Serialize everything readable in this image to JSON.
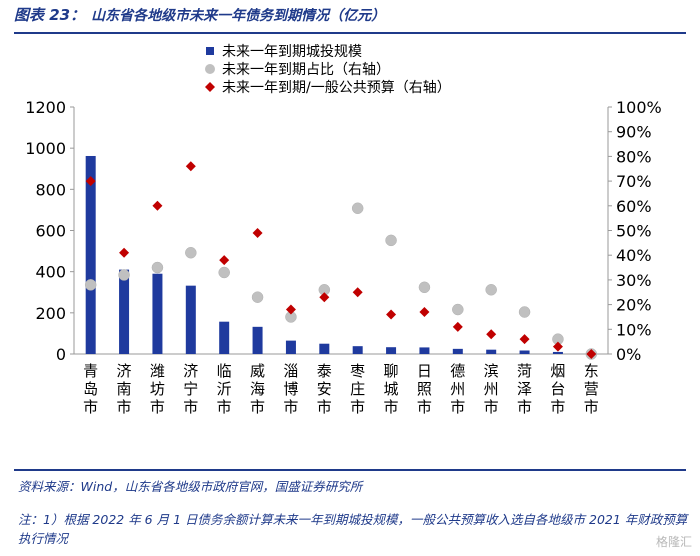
{
  "header": {
    "prefix": "图表 23：",
    "title": "山东省各地级市未来一年债务到期情况（亿元）"
  },
  "chart_data": {
    "type": "bar",
    "categories": [
      "青岛市",
      "济南市",
      "潍坊市",
      "济宁市",
      "临沂市",
      "威海市",
      "淄博市",
      "泰安市",
      "枣庄市",
      "聊城市",
      "日照市",
      "德州市",
      "滨州市",
      "菏泽市",
      "烟台市",
      "东营市"
    ],
    "y_left": {
      "ticks": [
        "0",
        "200",
        "400",
        "600",
        "800",
        "1000",
        "1200"
      ],
      "ylim": [
        0,
        1200
      ]
    },
    "y_right": {
      "ticks": [
        "0%",
        "10%",
        "20%",
        "30%",
        "40%",
        "50%",
        "60%",
        "70%",
        "80%",
        "90%",
        "100%"
      ],
      "ylim": [
        0,
        1
      ]
    },
    "legend": {
      "position": "top"
    },
    "series": [
      {
        "name": "未来一年到期城投规模",
        "type": "bar",
        "axis": "left",
        "color": "#1f3a9e",
        "values": [
          962,
          410,
          390,
          332,
          157,
          132,
          65,
          50,
          38,
          33,
          32,
          25,
          21,
          17,
          10,
          3
        ]
      },
      {
        "name": "未来一年到期占比（右轴）",
        "type": "scatter",
        "axis": "right",
        "color": "#c0c0c0",
        "values": [
          0.28,
          0.32,
          0.35,
          0.41,
          0.33,
          0.23,
          0.15,
          0.26,
          0.59,
          0.46,
          0.27,
          0.18,
          0.26,
          0.17,
          0.06,
          0.0
        ]
      },
      {
        "name": "未来一年到期/一般公共预算（右轴）",
        "type": "scatter",
        "axis": "right",
        "color": "#c00000",
        "values": [
          0.7,
          0.41,
          0.6,
          0.76,
          0.38,
          0.49,
          0.18,
          0.23,
          0.25,
          0.16,
          0.17,
          0.11,
          0.08,
          0.06,
          0.03,
          0.0
        ]
      }
    ]
  },
  "footer": {
    "source": "资料来源：Wind，山东省各地级市政府官网，国盛证券研究所",
    "note": "注：1）根据 2022 年 6 月 1 日债务余额计算未来一年到期城投规模，一般公共预算收入选自各地级市 2021 年财政预算执行情况"
  },
  "watermark": "格隆汇"
}
